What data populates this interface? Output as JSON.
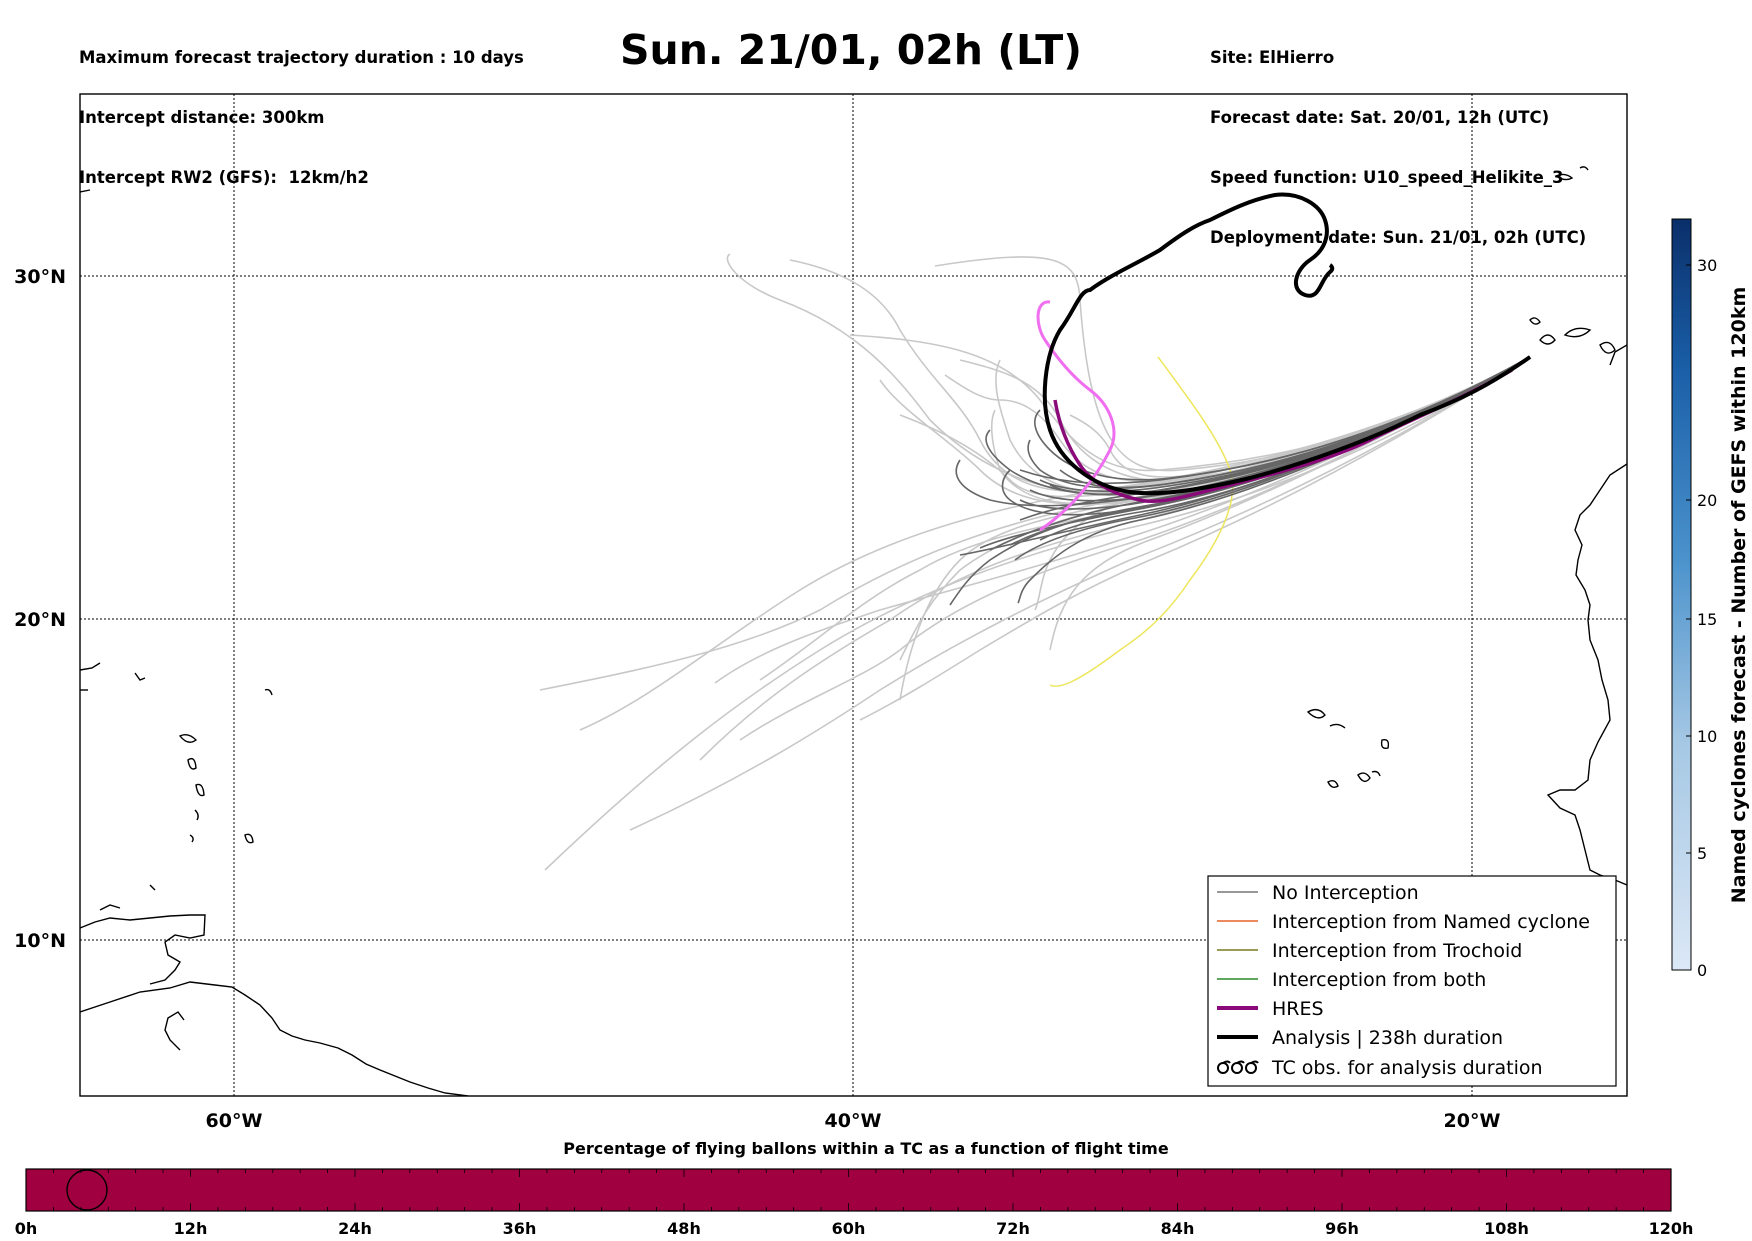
{
  "header_left": [
    "Maximum forecast trajectory duration : 10 days",
    "Intercept distance: 300km",
    "Intercept RW2 (GFS):  12km/h2"
  ],
  "header_right": [
    "Site: ElHierro",
    "Forecast date: Sat. 20/01, 12h (UTC)",
    "Speed function: U10_speed_Helikite_3",
    "Deployment date: Sun. 21/01, 02h (UTC)"
  ],
  "title": "Sun. 21/01, 02h (LT)",
  "map": {
    "lat_ticks": [
      {
        "value": 30,
        "label": "30°N"
      },
      {
        "value": 20,
        "label": "20°N"
      },
      {
        "value": 10,
        "label": "10°N"
      }
    ],
    "lon_ticks": [
      {
        "value": -60,
        "label": "60°W"
      },
      {
        "value": -40,
        "label": "40°W"
      },
      {
        "value": -20,
        "label": "20°W"
      }
    ],
    "gridlines": "dotted"
  },
  "legend": {
    "placement": "bottom-right",
    "items": [
      {
        "label": "No Interception",
        "color": "#777777",
        "style": "thin"
      },
      {
        "label": "Interception from Named cyclone",
        "color": "#e8642a",
        "style": "thin"
      },
      {
        "label": "Interception from Trochoid",
        "color": "#7a7a20",
        "style": "thin"
      },
      {
        "label": "Interception from both",
        "color": "#2a8a2a",
        "style": "thin"
      },
      {
        "label": "HRES",
        "color": "#8a0a7a",
        "style": "thick"
      },
      {
        "label": "Analysis | 238h duration",
        "color": "#000000",
        "style": "thick"
      },
      {
        "label": "TC obs. for analysis duration",
        "color": "#000000",
        "style": "symbol"
      }
    ]
  },
  "colorbar": {
    "label": "Named cyclones forecast - Number of GEFS within 120km",
    "ticks": [
      {
        "value": 0,
        "label": "0"
      },
      {
        "value": 5,
        "label": "5"
      },
      {
        "value": 10,
        "label": "10"
      },
      {
        "value": 15,
        "label": "15"
      },
      {
        "value": 20,
        "label": "20"
      },
      {
        "value": 30,
        "label": "30"
      }
    ]
  },
  "timeline": {
    "title": "Percentage of flying ballons within a TC as a function of flight time",
    "ticks": [
      "0h",
      "12h",
      "24h",
      "36h",
      "48h",
      "60h",
      "72h",
      "84h",
      "96h",
      "108h",
      "120h"
    ],
    "fill_color": "#a00040"
  }
}
